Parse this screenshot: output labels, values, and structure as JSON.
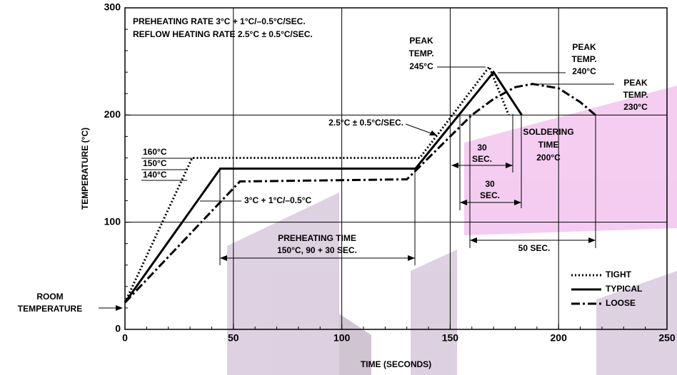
{
  "chart_data": {
    "type": "line",
    "xlabel": "TIME (SECONDS)",
    "ylabel": "TEMPERATURE (°C)",
    "xlim": [
      0,
      250
    ],
    "xticks": [
      0,
      50,
      100,
      150,
      200,
      250
    ],
    "ylim": [
      0,
      300
    ],
    "yticks": [
      0,
      100,
      200,
      300
    ],
    "grid": true,
    "legend": "lower right",
    "series": [
      {
        "name": "TIGHT",
        "color": "#000000",
        "style": "dotted",
        "x": [
          0,
          31,
          136,
          168,
          177
        ],
        "values": [
          25,
          160,
          160,
          245,
          200
        ]
      },
      {
        "name": "TYPICAL",
        "color": "#000000",
        "style": "solid",
        "x": [
          0,
          44,
          134,
          170,
          183
        ],
        "values": [
          25,
          150,
          150,
          240,
          200
        ]
      },
      {
        "name": "LOOSE",
        "color": "#000000",
        "style": "dashdot",
        "x": [
          0,
          53,
          130,
          150,
          160,
          170,
          180,
          188,
          200,
          210,
          217
        ],
        "values": [
          25,
          138,
          140,
          180,
          200,
          215,
          226,
          229,
          225,
          212,
          200
        ]
      }
    ],
    "annotations": [
      {
        "lines": [
          "PREHEATING RATE 3°C + 1°C/–0.5°C/SEC.",
          "REFLOW HEATING RATE 2.5°C ± 0.5°C/SEC."
        ]
      },
      {
        "lines": [
          "PEAK",
          "TEMP.",
          "245°C"
        ]
      },
      {
        "lines": [
          "PEAK",
          "TEMP.",
          "240°C"
        ]
      },
      {
        "lines": [
          "PEAK",
          "TEMP.",
          "230°C"
        ]
      },
      {
        "lines": [
          "2.5°C ± 0.5°C/SEC."
        ]
      },
      {
        "lines": [
          "SOLDERING",
          "TIME",
          "200°C"
        ]
      },
      {
        "lines": [
          "30",
          "SEC."
        ]
      },
      {
        "lines": [
          "30",
          "SEC."
        ]
      },
      {
        "lines": [
          "50 SEC."
        ]
      },
      {
        "lines": [
          "PREHEATING TIME",
          "150°C, 90 + 30 SEC."
        ]
      },
      {
        "lines": [
          "160°C"
        ]
      },
      {
        "lines": [
          "150°C"
        ]
      },
      {
        "lines": [
          "140°C"
        ]
      },
      {
        "lines": [
          "3°C + 1°C/–0.5°C"
        ]
      },
      {
        "lines": [
          "ROOM",
          "TEMPERATURE"
        ]
      }
    ]
  }
}
